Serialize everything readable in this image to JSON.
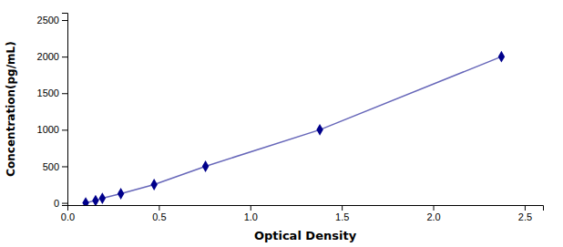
{
  "chart_data": {
    "type": "line",
    "x": [
      0.1,
      0.154,
      0.191,
      0.292,
      0.474,
      0.755,
      1.38,
      2.373
    ],
    "values": [
      0,
      31.25,
      62.5,
      125,
      250,
      500,
      1000,
      2000
    ],
    "color": "#00008B",
    "marker": "diamond",
    "xlabel": "Optical Density",
    "ylabel": "Concentration(pg/mL)",
    "xlim": [
      0,
      2.6
    ],
    "ylim": [
      -30,
      2600
    ],
    "xticks": [
      {
        "value": 0,
        "label": "0.0"
      },
      0.5,
      {
        "value": 1,
        "label": "1.0"
      },
      1.5,
      {
        "value": 2,
        "label": "2.0"
      },
      2.5
    ],
    "yticks": [
      0,
      500,
      1000,
      1500,
      2000,
      2500
    ],
    "grid": false
  }
}
